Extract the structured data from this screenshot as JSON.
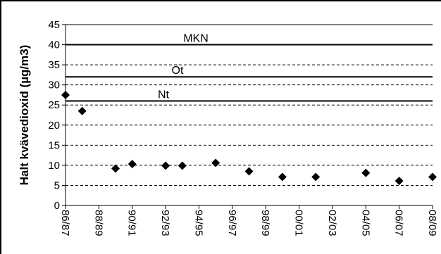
{
  "chart_data": {
    "type": "scatter",
    "title": "",
    "xlabel": "",
    "ylabel": "Halt kvävedioxid (µg/m3)",
    "ylim": [
      0,
      45
    ],
    "yticks": [
      0,
      5,
      10,
      15,
      20,
      25,
      30,
      35,
      40,
      45
    ],
    "grid": "dashed horizontal",
    "legend": "none",
    "categories": [
      "86/87",
      "87/88",
      "88/89",
      "89/90",
      "90/91",
      "91/92",
      "92/93",
      "93/94",
      "94/95",
      "95/96",
      "96/97",
      "97/98",
      "98/99",
      "99/00",
      "00/01",
      "01/02",
      "02/03",
      "03/04",
      "04/05",
      "05/06",
      "06/07",
      "07/08",
      "08/09"
    ],
    "xticks": [
      "86/87",
      "88/89",
      "90/91",
      "92/93",
      "94/95",
      "96/97",
      "98/99",
      "00/01",
      "02/03",
      "04/05",
      "06/07",
      "08/09"
    ],
    "series": [
      {
        "marker": "diamond",
        "color": "#000000",
        "points": [
          {
            "x": "86/87",
            "y": 27.5
          },
          {
            "x": "87/88",
            "y": 23.5
          },
          {
            "x": "89/90",
            "y": 9.2
          },
          {
            "x": "90/91",
            "y": 10.3
          },
          {
            "x": "92/93",
            "y": 9.9
          },
          {
            "x": "93/94",
            "y": 9.9
          },
          {
            "x": "95/96",
            "y": 10.6
          },
          {
            "x": "97/98",
            "y": 8.5
          },
          {
            "x": "99/00",
            "y": 7.1
          },
          {
            "x": "01/02",
            "y": 7.1
          },
          {
            "x": "04/05",
            "y": 8.1
          },
          {
            "x": "06/07",
            "y": 6.1
          },
          {
            "x": "08/09",
            "y": 7.1
          }
        ]
      }
    ],
    "reference_lines": [
      {
        "label": "MKN",
        "y": 40
      },
      {
        "label": "Öt",
        "y": 32
      },
      {
        "label": "Nt",
        "y": 26
      }
    ]
  }
}
